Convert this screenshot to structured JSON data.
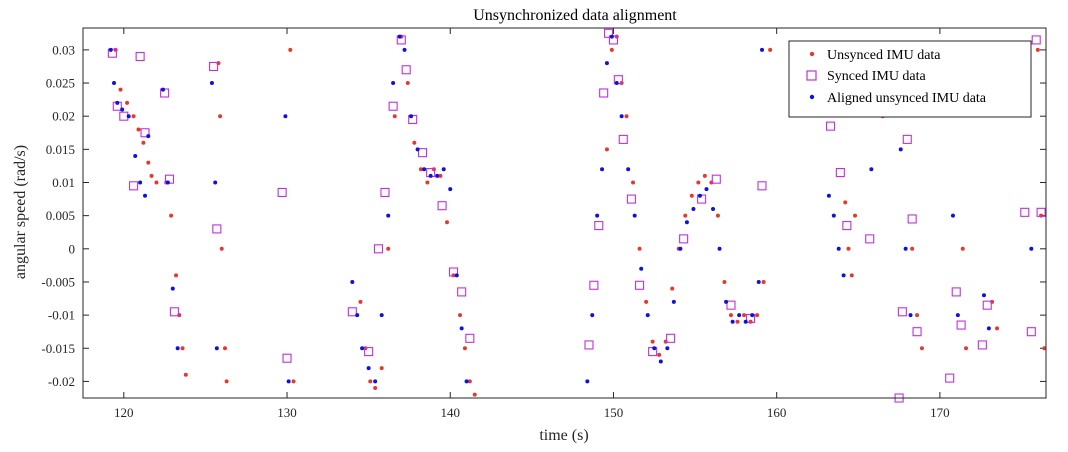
{
  "chart_data": {
    "type": "scatter",
    "title": "Unsynchronized data alignment",
    "xlabel": "time (s)",
    "ylabel": "angular speed (rad/s)",
    "xlim": [
      117.5,
      176.5
    ],
    "ylim": [
      -0.0225,
      0.0333
    ],
    "xticks": [
      120,
      130,
      140,
      150,
      160,
      170
    ],
    "yticks": [
      -0.02,
      -0.015,
      -0.01,
      -0.005,
      0,
      0.005,
      0.01,
      0.015,
      0.02,
      0.025,
      0.03
    ],
    "ytick_labels": [
      "-0.02",
      "-0.015",
      "-0.01",
      "-0.005",
      "0",
      "0.005",
      "0.01",
      "0.015",
      "0.02",
      "0.025",
      "0.03"
    ],
    "grid": false,
    "legend_position": "top-right",
    "colors": {
      "unsynced": "#e8382c",
      "synced": "#c030e0",
      "aligned": "#1010e0"
    },
    "series": [
      {
        "name": "Unsynced IMU data",
        "marker": "dot",
        "x": [
          119.5,
          119.8,
          120.2,
          120.6,
          120.9,
          121.2,
          121.5,
          121.7,
          122.0,
          122.6,
          122.9,
          123.2,
          123.4,
          123.6,
          123.8,
          125.8,
          125.9,
          126.0,
          126.2,
          126.3,
          130.2,
          130.4,
          134.5,
          134.8,
          135.1,
          135.4,
          135.8,
          136.2,
          136.6,
          137.0,
          137.4,
          137.8,
          138.2,
          138.6,
          139.0,
          139.4,
          139.8,
          140.2,
          140.6,
          140.9,
          141.2,
          141.5,
          149.6,
          149.9,
          150.2,
          150.5,
          150.8,
          151.2,
          151.6,
          152.0,
          152.4,
          152.8,
          153.2,
          153.6,
          154.0,
          154.4,
          154.8,
          155.2,
          155.6,
          156.0,
          156.4,
          156.8,
          157.2,
          157.6,
          158.0,
          158.4,
          158.8,
          159.2,
          159.6,
          164.2,
          164.4,
          164.6,
          164.8,
          166.5,
          168.3,
          168.6,
          168.9,
          171.4,
          171.6,
          173.2,
          173.5,
          176.0,
          176.2,
          176.4
        ],
        "y": [
          0.03,
          0.024,
          0.022,
          0.02,
          0.018,
          0.016,
          0.013,
          0.011,
          0.01,
          0.01,
          0.005,
          -0.004,
          -0.01,
          -0.015,
          -0.019,
          0.028,
          0.02,
          0.0,
          -0.015,
          -0.02,
          0.03,
          -0.02,
          -0.008,
          -0.015,
          -0.02,
          -0.021,
          -0.018,
          0.0,
          0.02,
          0.032,
          0.025,
          0.016,
          0.012,
          0.01,
          0.012,
          0.011,
          0.004,
          -0.004,
          -0.01,
          -0.015,
          -0.02,
          -0.022,
          0.015,
          0.03,
          0.032,
          0.025,
          0.02,
          0.01,
          0.0,
          -0.008,
          -0.014,
          -0.016,
          -0.014,
          -0.006,
          0.0,
          0.005,
          0.008,
          0.01,
          0.011,
          0.01,
          0.005,
          -0.005,
          -0.01,
          -0.011,
          -0.01,
          -0.011,
          -0.01,
          -0.005,
          0.03,
          0.007,
          0.0,
          -0.004,
          0.005,
          0.02,
          0.0,
          -0.01,
          -0.015,
          0.0,
          -0.015,
          -0.008,
          -0.012,
          0.03,
          0.005,
          -0.015
        ]
      },
      {
        "name": "Synced IMU data",
        "marker": "square",
        "x": [
          119.3,
          119.6,
          120.0,
          120.6,
          121.0,
          121.3,
          122.5,
          122.8,
          123.1,
          125.5,
          125.7,
          129.7,
          130.0,
          134.0,
          135.0,
          135.6,
          136.0,
          136.5,
          137.0,
          137.3,
          137.7,
          138.3,
          138.8,
          139.5,
          140.2,
          140.7,
          141.2,
          148.5,
          148.8,
          149.1,
          149.4,
          149.7,
          150.0,
          150.3,
          150.6,
          151.1,
          151.6,
          152.4,
          153.5,
          154.3,
          155.4,
          156.3,
          157.2,
          158.4,
          159.1,
          163.3,
          163.9,
          164.3,
          165.7,
          167.5,
          167.7,
          168.0,
          168.3,
          168.6,
          170.6,
          171.0,
          171.3,
          172.6,
          172.9,
          175.2,
          175.6,
          175.9,
          176.2
        ],
        "y": [
          0.0295,
          0.0215,
          0.02,
          0.0095,
          0.029,
          0.0175,
          0.0235,
          0.0105,
          -0.0095,
          0.0275,
          0.003,
          0.0085,
          -0.0165,
          -0.0095,
          -0.0155,
          0.0,
          0.0085,
          0.0215,
          0.0315,
          0.027,
          0.0195,
          0.0145,
          0.0115,
          0.0065,
          -0.0035,
          -0.0065,
          -0.0135,
          -0.0145,
          -0.0055,
          0.0035,
          0.0235,
          0.0325,
          0.0315,
          0.0255,
          0.0165,
          0.0075,
          -0.0055,
          -0.0155,
          -0.0135,
          0.0015,
          0.0075,
          0.0105,
          -0.0085,
          -0.0105,
          0.0095,
          0.0185,
          0.0115,
          0.0035,
          0.0015,
          -0.0225,
          -0.0095,
          0.0165,
          0.0045,
          -0.0125,
          -0.0195,
          -0.0065,
          -0.0115,
          -0.0145,
          -0.0085,
          0.0055,
          -0.0125,
          0.0315,
          0.0055
        ]
      },
      {
        "name": "Aligned unsynced IMU data",
        "marker": "dot",
        "x": [
          119.2,
          119.4,
          119.6,
          119.9,
          120.3,
          120.7,
          121.0,
          121.3,
          121.5,
          122.4,
          122.7,
          123.0,
          123.3,
          125.4,
          125.6,
          125.7,
          129.9,
          130.1,
          134.0,
          134.3,
          134.6,
          135.0,
          135.4,
          135.8,
          136.2,
          136.5,
          136.9,
          137.2,
          137.6,
          138.0,
          138.4,
          138.8,
          139.2,
          139.6,
          140.0,
          140.4,
          140.7,
          141.0,
          148.4,
          148.7,
          149.0,
          149.3,
          149.6,
          149.9,
          150.2,
          150.5,
          150.9,
          151.3,
          151.7,
          152.1,
          152.5,
          152.9,
          153.3,
          153.7,
          154.1,
          154.5,
          154.9,
          155.3,
          155.7,
          156.1,
          156.5,
          156.9,
          157.3,
          157.7,
          158.1,
          158.5,
          158.9,
          159.1,
          163.2,
          163.5,
          163.8,
          164.1,
          165.8,
          167.6,
          167.9,
          168.2,
          170.8,
          171.1,
          172.7,
          173.0,
          175.3,
          175.6
        ],
        "y": [
          0.03,
          0.025,
          0.022,
          0.021,
          0.02,
          0.014,
          0.01,
          0.008,
          0.017,
          0.024,
          0.01,
          -0.006,
          -0.015,
          0.025,
          0.01,
          -0.015,
          0.02,
          -0.02,
          -0.005,
          -0.01,
          -0.015,
          -0.018,
          -0.02,
          -0.01,
          0.005,
          0.025,
          0.032,
          0.03,
          0.02,
          0.015,
          0.012,
          0.011,
          0.011,
          0.012,
          0.009,
          -0.004,
          -0.012,
          -0.02,
          -0.02,
          -0.01,
          0.005,
          0.012,
          0.028,
          0.032,
          0.025,
          0.02,
          0.012,
          0.005,
          -0.003,
          -0.01,
          -0.015,
          -0.017,
          -0.015,
          -0.008,
          0.0,
          0.004,
          0.006,
          0.008,
          0.009,
          0.006,
          0.0,
          -0.008,
          -0.011,
          -0.01,
          -0.011,
          -0.01,
          -0.005,
          0.03,
          0.008,
          0.005,
          0.0,
          -0.004,
          0.012,
          0.015,
          0.0,
          -0.01,
          0.005,
          -0.01,
          -0.007,
          -0.012,
          0.028,
          0.0
        ]
      }
    ]
  }
}
